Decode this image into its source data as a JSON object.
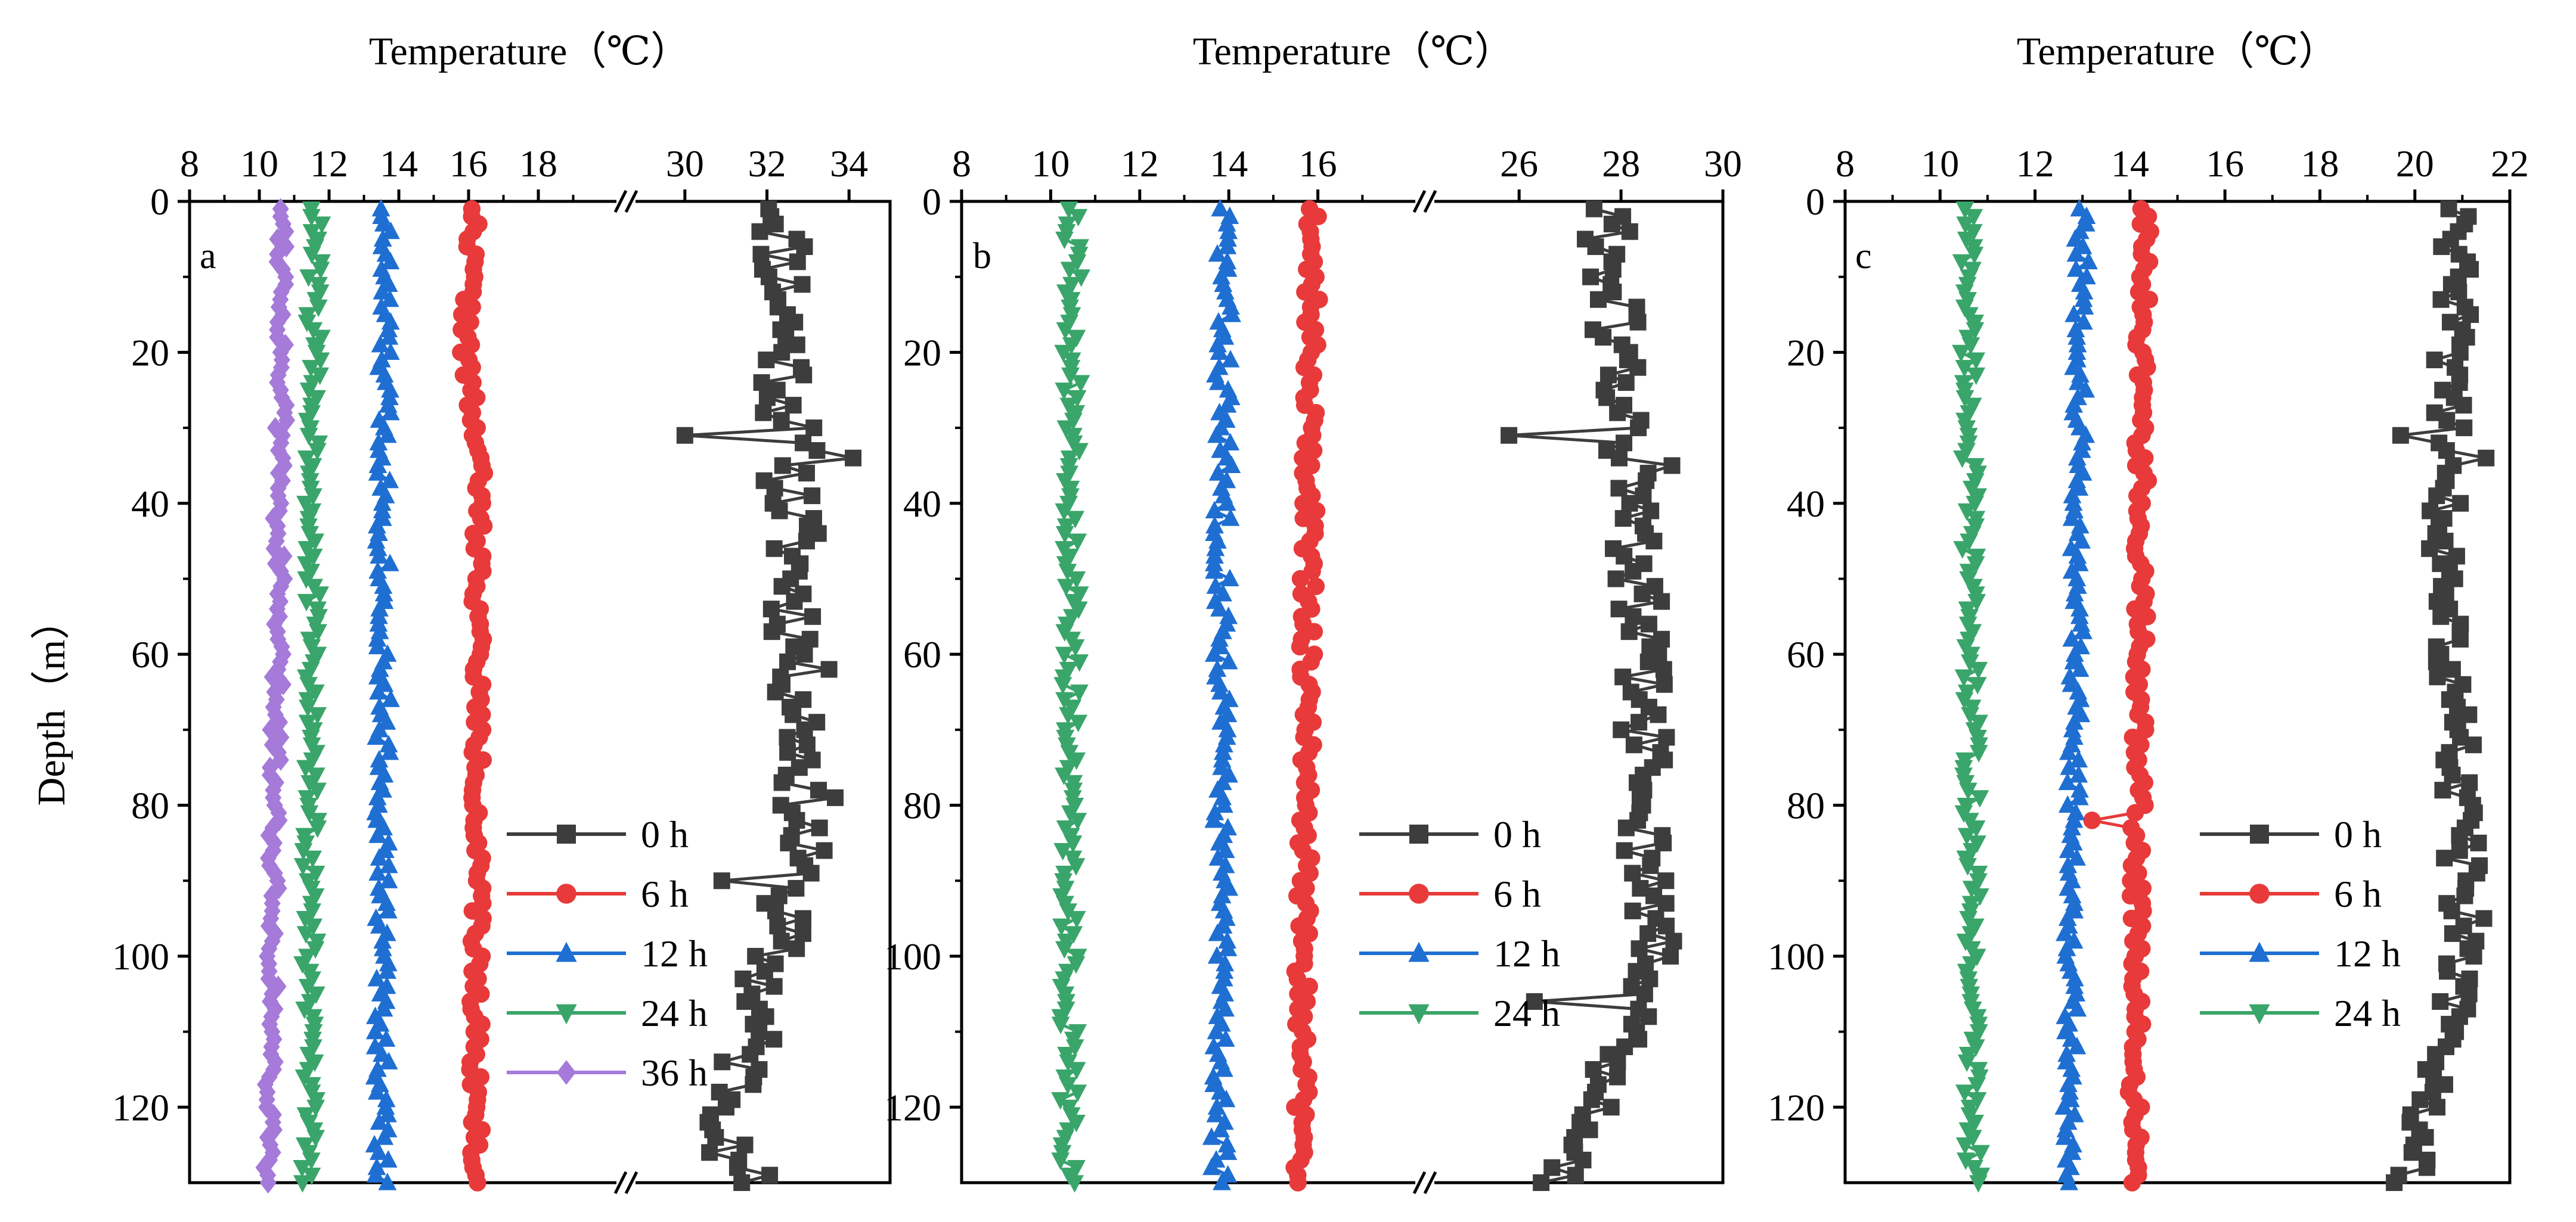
{
  "figure": {
    "ylabel": "Depth（m）"
  },
  "chart_data": [
    {
      "type": "line",
      "panel": "a",
      "title": "Temperature（℃）",
      "xlabel": "Temperature（℃）",
      "ylabel": "Depth（m）",
      "axis_break": true,
      "x_left_range": [
        8,
        20
      ],
      "x_right_range": [
        29,
        35
      ],
      "ylim": [
        0,
        130
      ],
      "y_inverted": true,
      "x_ticks_left": [
        "8",
        "10",
        "12",
        "14",
        "16",
        "18"
      ],
      "x_ticks_right": [
        "30",
        "32",
        "34"
      ],
      "y_ticks": [
        "0",
        "20",
        "40",
        "60",
        "80",
        "100",
        "120"
      ],
      "legend_position": "lower-right",
      "series": [
        {
          "name": "0 h",
          "color": "#3d3d3d",
          "marker": "square",
          "side": "right",
          "center": 32.3,
          "amp": 0.7,
          "seed": 11,
          "spikes": [
            {
              "depth": 31,
              "value": 30.0
            },
            {
              "depth": 34,
              "value": 34.1
            },
            {
              "depth": 90,
              "value": 30.9
            },
            {
              "depth": 126,
              "value": 30.6
            }
          ],
          "trend": [
            [
              0,
              32.4
            ],
            [
              40,
              32.6
            ],
            [
              80,
              33.0
            ],
            [
              120,
              31.2
            ],
            [
              130,
              31.5
            ]
          ]
        },
        {
          "name": "6 h",
          "color": "#e83a3a",
          "marker": "circle",
          "side": "left",
          "center": 16.2,
          "amp": 0.18,
          "seed": 22,
          "spikes": [],
          "trend": [
            [
              0,
              16.2
            ],
            [
              20,
              15.9
            ],
            [
              35,
              16.3
            ],
            [
              130,
              16.2
            ]
          ]
        },
        {
          "name": "12 h",
          "color": "#1f6fd2",
          "marker": "triangle-up",
          "side": "left",
          "center": 13.5,
          "amp": 0.22,
          "seed": 33,
          "spikes": [],
          "trend": [
            [
              0,
              13.6
            ],
            [
              130,
              13.5
            ]
          ]
        },
        {
          "name": "24 h",
          "color": "#3aa56a",
          "marker": "triangle-down",
          "side": "left",
          "center": 11.5,
          "amp": 0.22,
          "seed": 44,
          "spikes": [],
          "trend": [
            [
              0,
              11.6
            ],
            [
              130,
              11.4
            ]
          ]
        },
        {
          "name": "36 h",
          "color": "#a57ad8",
          "marker": "diamond",
          "side": "left",
          "center": 10.4,
          "amp": 0.18,
          "seed": 55,
          "spikes": [],
          "trend": [
            [
              0,
              10.7
            ],
            [
              130,
              10.3
            ]
          ]
        }
      ]
    },
    {
      "type": "line",
      "panel": "b",
      "title": "Temperature（℃）",
      "xlabel": "Temperature（℃）",
      "ylabel": "",
      "axis_break": true,
      "x_left_range": [
        8,
        18
      ],
      "x_right_range": [
        24.5,
        30
      ],
      "ylim": [
        0,
        130
      ],
      "y_inverted": true,
      "x_ticks_left": [
        "8",
        "10",
        "12",
        "14",
        "16"
      ],
      "x_ticks_right": [
        "26",
        "28",
        "30"
      ],
      "y_ticks": [
        "0",
        "20",
        "40",
        "60",
        "80",
        "100",
        "120"
      ],
      "legend_position": "lower-right",
      "series": [
        {
          "name": "0 h",
          "color": "#3d3d3d",
          "marker": "square",
          "side": "right",
          "center": 27.9,
          "amp": 0.5,
          "seed": 61,
          "spikes": [
            {
              "depth": 31,
              "value": 25.8
            },
            {
              "depth": 35,
              "value": 29.0
            },
            {
              "depth": 106,
              "value": 26.3
            }
          ],
          "trend": [
            [
              0,
              27.7
            ],
            [
              60,
              28.4
            ],
            [
              100,
              28.6
            ],
            [
              130,
              26.8
            ]
          ]
        },
        {
          "name": "6 h",
          "color": "#e83a3a",
          "marker": "circle",
          "side": "left",
          "center": 15.7,
          "amp": 0.18,
          "seed": 72,
          "spikes": [],
          "trend": [
            [
              0,
              15.9
            ],
            [
              130,
              15.6
            ]
          ]
        },
        {
          "name": "12 h",
          "color": "#1f6fd2",
          "marker": "triangle-up",
          "side": "left",
          "center": 13.8,
          "amp": 0.2,
          "seed": 83,
          "spikes": [],
          "trend": [
            [
              0,
              13.9
            ],
            [
              130,
              13.8
            ]
          ]
        },
        {
          "name": "24 h",
          "color": "#3aa56a",
          "marker": "triangle-down",
          "side": "left",
          "center": 10.4,
          "amp": 0.2,
          "seed": 94,
          "spikes": [],
          "trend": [
            [
              0,
              10.5
            ],
            [
              130,
              10.4
            ]
          ]
        }
      ]
    },
    {
      "type": "line",
      "panel": "c",
      "title": "Temperature（℃）",
      "xlabel": "Temperature（℃）",
      "ylabel": "",
      "axis_break": false,
      "x_range": [
        8,
        22
      ],
      "ylim": [
        0,
        130
      ],
      "y_inverted": true,
      "x_ticks": [
        "8",
        "10",
        "12",
        "14",
        "16",
        "18",
        "20",
        "22"
      ],
      "y_ticks": [
        "0",
        "20",
        "40",
        "60",
        "80",
        "100",
        "120"
      ],
      "legend_position": "lower-center",
      "series": [
        {
          "name": "0 h",
          "color": "#3d3d3d",
          "marker": "square",
          "side": "full",
          "center": 20.7,
          "amp": 0.4,
          "seed": 105,
          "spikes": [
            {
              "depth": 31,
              "value": 19.7
            },
            {
              "depth": 34,
              "value": 21.5
            }
          ],
          "trend": [
            [
              0,
              20.9
            ],
            [
              40,
              20.6
            ],
            [
              100,
              21.1
            ],
            [
              130,
              19.9
            ]
          ]
        },
        {
          "name": "6 h",
          "color": "#e83a3a",
          "marker": "circle",
          "side": "full",
          "center": 14.2,
          "amp": 0.15,
          "seed": 116,
          "spikes": [
            {
              "depth": 82,
              "value": 13.2
            }
          ],
          "trend": [
            [
              0,
              14.3
            ],
            [
              130,
              14.1
            ]
          ]
        },
        {
          "name": "12 h",
          "color": "#1f6fd2",
          "marker": "triangle-up",
          "side": "full",
          "center": 12.7,
          "amp": 0.15,
          "seed": 127,
          "spikes": [],
          "trend": [
            [
              0,
              13.0
            ],
            [
              130,
              12.7
            ]
          ]
        },
        {
          "name": "24 h",
          "color": "#3aa56a",
          "marker": "triangle-down",
          "side": "full",
          "center": 10.6,
          "amp": 0.18,
          "seed": 138,
          "spikes": [],
          "trend": [
            [
              0,
              10.6
            ],
            [
              130,
              10.7
            ]
          ]
        }
      ]
    }
  ]
}
